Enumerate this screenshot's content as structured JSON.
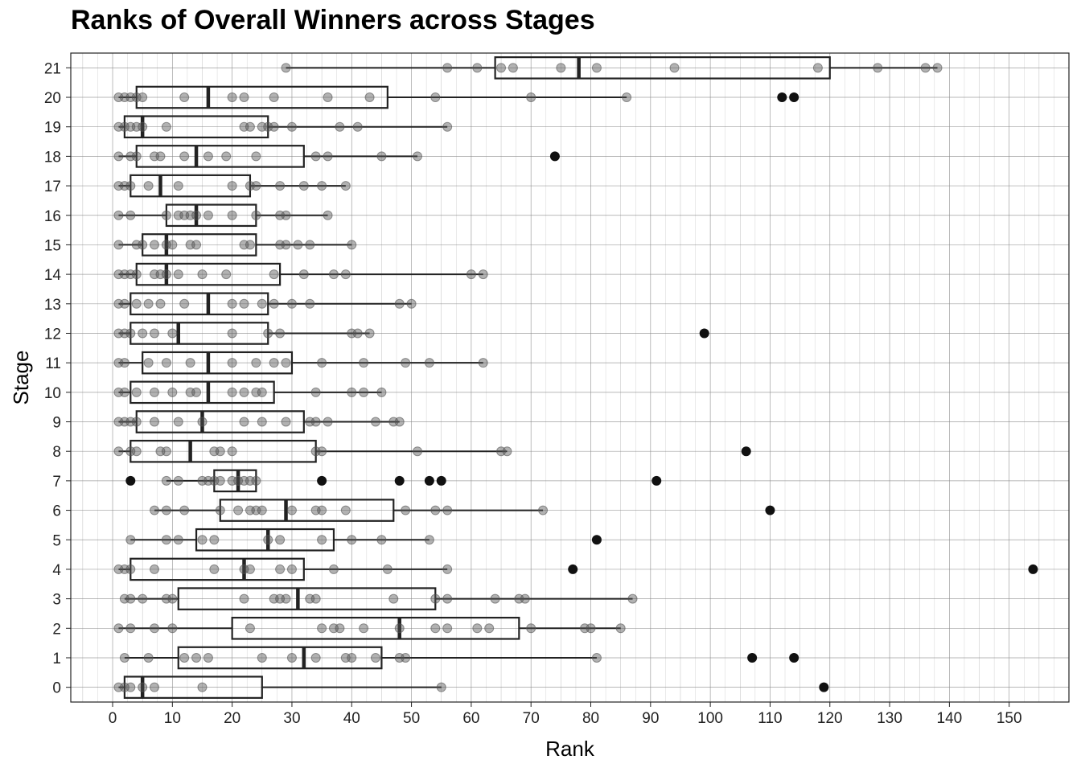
{
  "chart_data": {
    "type": "boxplot",
    "title": "Ranks of Overall Winners across Stages",
    "xlabel": "Rank",
    "ylabel": "Stage",
    "xlim": [
      -7,
      160
    ],
    "x_ticks": [
      0,
      10,
      20,
      30,
      40,
      50,
      60,
      70,
      80,
      90,
      100,
      110,
      120,
      130,
      140,
      150
    ],
    "orientation": "horizontal",
    "grid": true,
    "grid_minor": true,
    "colors": {
      "box": "#222222",
      "points": "#555555",
      "outliers": "#111111",
      "grid": "#888888"
    },
    "stages": [
      {
        "stage": "0",
        "q1": 2,
        "median": 5,
        "q3": 25,
        "whisker_low": 1,
        "whisker_high": 55,
        "points": [
          1,
          2,
          3,
          5,
          7,
          15,
          55
        ],
        "outliers": [
          119
        ]
      },
      {
        "stage": "1",
        "q1": 11,
        "median": 32,
        "q3": 45,
        "whisker_low": 2,
        "whisker_high": 81,
        "points": [
          2,
          6,
          12,
          14,
          16,
          25,
          30,
          34,
          39,
          40,
          44,
          48,
          49,
          81
        ],
        "outliers": [
          107,
          114
        ]
      },
      {
        "stage": "2",
        "q1": 20,
        "median": 48,
        "q3": 68,
        "whisker_low": 1,
        "whisker_high": 85,
        "points": [
          1,
          3,
          7,
          10,
          23,
          35,
          37,
          38,
          42,
          48,
          54,
          56,
          61,
          63,
          70,
          79,
          80,
          85
        ],
        "outliers": []
      },
      {
        "stage": "3",
        "q1": 11,
        "median": 31,
        "q3": 54,
        "whisker_low": 2,
        "whisker_high": 87,
        "points": [
          2,
          3,
          5,
          9,
          10,
          22,
          27,
          28,
          29,
          33,
          34,
          47,
          54,
          56,
          64,
          68,
          69,
          87
        ],
        "outliers": []
      },
      {
        "stage": "4",
        "q1": 3,
        "median": 22,
        "q3": 32,
        "whisker_low": 1,
        "whisker_high": 56,
        "points": [
          1,
          2,
          3,
          7,
          17,
          22,
          23,
          28,
          30,
          37,
          46,
          56
        ],
        "outliers": [
          77,
          154
        ]
      },
      {
        "stage": "5",
        "q1": 14,
        "median": 26,
        "q3": 37,
        "whisker_low": 3,
        "whisker_high": 53,
        "points": [
          3,
          9,
          11,
          15,
          17,
          26,
          28,
          35,
          40,
          45,
          53
        ],
        "outliers": [
          81
        ]
      },
      {
        "stage": "6",
        "q1": 18,
        "median": 29,
        "q3": 47,
        "whisker_low": 7,
        "whisker_high": 72,
        "points": [
          7,
          9,
          12,
          18,
          21,
          23,
          24,
          25,
          30,
          34,
          35,
          39,
          49,
          54,
          56,
          72
        ],
        "outliers": [
          110
        ]
      },
      {
        "stage": "7",
        "q1": 17,
        "median": 21,
        "q3": 24,
        "whisker_low": 9,
        "whisker_high": 24,
        "points": [
          9,
          11,
          15,
          16,
          17,
          18,
          20,
          21,
          22,
          23,
          24
        ],
        "outliers": [
          3,
          35,
          48,
          53,
          55,
          91
        ]
      },
      {
        "stage": "8",
        "q1": 3,
        "median": 13,
        "q3": 34,
        "whisker_low": 1,
        "whisker_high": 66,
        "points": [
          1,
          3,
          4,
          8,
          9,
          17,
          18,
          20,
          34,
          35,
          51,
          65,
          66
        ],
        "outliers": [
          106
        ]
      },
      {
        "stage": "9",
        "q1": 4,
        "median": 15,
        "q3": 32,
        "whisker_low": 1,
        "whisker_high": 48,
        "points": [
          1,
          2,
          3,
          4,
          7,
          11,
          15,
          22,
          25,
          29,
          33,
          34,
          36,
          44,
          47,
          48
        ],
        "outliers": []
      },
      {
        "stage": "10",
        "q1": 3,
        "median": 16,
        "q3": 27,
        "whisker_low": 1,
        "whisker_high": 45,
        "points": [
          1,
          2,
          4,
          7,
          10,
          13,
          14,
          20,
          22,
          24,
          25,
          34,
          40,
          42,
          45
        ],
        "outliers": []
      },
      {
        "stage": "11",
        "q1": 5,
        "median": 16,
        "q3": 30,
        "whisker_low": 1,
        "whisker_high": 62,
        "points": [
          1,
          2,
          6,
          9,
          13,
          20,
          24,
          27,
          29,
          35,
          42,
          49,
          53,
          62
        ],
        "outliers": []
      },
      {
        "stage": "12",
        "q1": 3,
        "median": 11,
        "q3": 26,
        "whisker_low": 1,
        "whisker_high": 43,
        "points": [
          1,
          2,
          3,
          5,
          7,
          10,
          20,
          26,
          28,
          40,
          41,
          43
        ],
        "outliers": [
          99
        ]
      },
      {
        "stage": "13",
        "q1": 3,
        "median": 16,
        "q3": 26,
        "whisker_low": 1,
        "whisker_high": 50,
        "points": [
          1,
          2,
          4,
          6,
          8,
          12,
          20,
          22,
          25,
          27,
          30,
          33,
          48,
          50
        ],
        "outliers": []
      },
      {
        "stage": "14",
        "q1": 4,
        "median": 9,
        "q3": 28,
        "whisker_low": 1,
        "whisker_high": 62,
        "points": [
          1,
          2,
          3,
          4,
          7,
          8,
          9,
          11,
          15,
          19,
          27,
          32,
          37,
          39,
          60,
          62
        ],
        "outliers": []
      },
      {
        "stage": "15",
        "q1": 5,
        "median": 9,
        "q3": 24,
        "whisker_low": 1,
        "whisker_high": 40,
        "points": [
          1,
          4,
          5,
          7,
          9,
          10,
          13,
          14,
          22,
          23,
          28,
          29,
          31,
          33,
          40
        ],
        "outliers": []
      },
      {
        "stage": "16",
        "q1": 9,
        "median": 14,
        "q3": 24,
        "whisker_low": 1,
        "whisker_high": 36,
        "points": [
          1,
          3,
          9,
          11,
          12,
          13,
          14,
          16,
          20,
          24,
          28,
          29,
          36
        ],
        "outliers": []
      },
      {
        "stage": "17",
        "q1": 3,
        "median": 8,
        "q3": 23,
        "whisker_low": 1,
        "whisker_high": 39,
        "points": [
          1,
          2,
          3,
          6,
          11,
          20,
          23,
          24,
          28,
          32,
          35,
          39
        ],
        "outliers": []
      },
      {
        "stage": "18",
        "q1": 4,
        "median": 14,
        "q3": 32,
        "whisker_low": 1,
        "whisker_high": 51,
        "points": [
          1,
          3,
          4,
          7,
          8,
          12,
          16,
          19,
          24,
          34,
          36,
          45,
          51
        ],
        "outliers": [
          74
        ]
      },
      {
        "stage": "19",
        "q1": 2,
        "median": 5,
        "q3": 26,
        "whisker_low": 1,
        "whisker_high": 56,
        "points": [
          1,
          2,
          3,
          4,
          5,
          9,
          22,
          23,
          25,
          26,
          27,
          30,
          38,
          41,
          56
        ],
        "outliers": []
      },
      {
        "stage": "20",
        "q1": 4,
        "median": 16,
        "q3": 46,
        "whisker_low": 1,
        "whisker_high": 86,
        "points": [
          1,
          2,
          3,
          4,
          5,
          12,
          20,
          22,
          27,
          36,
          43,
          54,
          70,
          86
        ],
        "outliers": [
          112,
          114
        ]
      },
      {
        "stage": "21",
        "q1": 64,
        "median": 78,
        "q3": 120,
        "whisker_low": 29,
        "whisker_high": 138,
        "points": [
          29,
          56,
          61,
          65,
          67,
          75,
          81,
          94,
          118,
          128,
          136,
          138
        ],
        "outliers": []
      }
    ]
  }
}
